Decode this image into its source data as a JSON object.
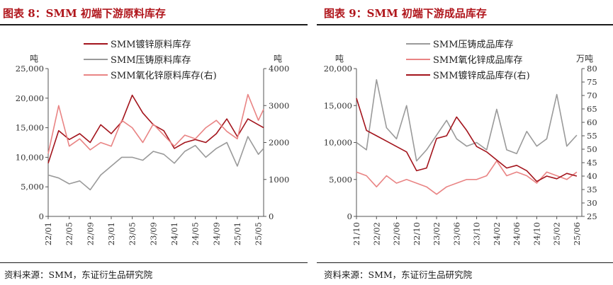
{
  "left": {
    "title": "图表 8：SMM 初端下游原料库存",
    "source": "资料来源：SMM，东证衍生品研究院",
    "chart_data": {
      "type": "line",
      "y_left_unit": "吨",
      "y_right_unit": "吨",
      "y_left_range": [
        0,
        25000
      ],
      "y_right_range": [
        0,
        4000
      ],
      "y_left_ticks": [
        "0",
        "5,000",
        "10,000",
        "15,000",
        "20,000",
        "25,000"
      ],
      "y_right_ticks": [
        "0",
        "1000",
        "2000",
        "3000",
        "4000"
      ],
      "x_ticks": [
        "22/01",
        "22/05",
        "22/09",
        "23/01",
        "23/05",
        "23/09",
        "24/01",
        "24/05",
        "24/09",
        "25/01",
        "25/05"
      ],
      "legend": [
        "SMM镀锌原料库存",
        "SMM压铸原料库存",
        "SMM氧化锌原料库存(右)"
      ],
      "grid": false,
      "series": [
        {
          "name": "SMM镀锌原料库存",
          "axis": "left",
          "color": "#a3141c",
          "x": [
            "22/01",
            "22/03",
            "22/05",
            "22/07",
            "22/09",
            "22/11",
            "23/01",
            "23/03",
            "23/05",
            "23/07",
            "23/09",
            "23/11",
            "24/01",
            "24/03",
            "24/05",
            "24/07",
            "24/09",
            "24/11",
            "25/01",
            "25/03",
            "25/05",
            "25/06"
          ],
          "values": [
            9000,
            14500,
            13000,
            14000,
            12500,
            15500,
            14000,
            16000,
            20500,
            17500,
            15500,
            14500,
            11500,
            12500,
            13000,
            12500,
            14000,
            16500,
            13500,
            16500,
            15500,
            15000
          ]
        },
        {
          "name": "SMM压铸原料库存",
          "axis": "left",
          "color": "#9a9a9a",
          "x": [
            "22/01",
            "22/03",
            "22/05",
            "22/07",
            "22/09",
            "22/11",
            "23/01",
            "23/03",
            "23/05",
            "23/07",
            "23/09",
            "23/11",
            "24/01",
            "24/03",
            "24/05",
            "24/07",
            "24/09",
            "24/11",
            "25/01",
            "25/03",
            "25/05",
            "25/06"
          ],
          "values": [
            7000,
            6500,
            5500,
            6000,
            4500,
            7000,
            8500,
            10000,
            10000,
            9500,
            11000,
            10500,
            9000,
            11000,
            12000,
            10000,
            11500,
            12500,
            8500,
            13500,
            10500,
            11500
          ]
        },
        {
          "name": "SMM氧化锌原料库存(右)",
          "axis": "right",
          "color": "#e98484",
          "x": [
            "22/01",
            "22/03",
            "22/05",
            "22/07",
            "22/09",
            "22/11",
            "23/01",
            "23/03",
            "23/05",
            "23/07",
            "23/09",
            "23/11",
            "24/01",
            "24/03",
            "24/05",
            "24/07",
            "24/09",
            "24/11",
            "25/01",
            "25/03",
            "25/05",
            "25/06"
          ],
          "values": [
            1700,
            3000,
            1900,
            2100,
            1800,
            2000,
            1900,
            2600,
            2400,
            2000,
            2500,
            2200,
            1900,
            2200,
            2100,
            2400,
            2600,
            2300,
            2100,
            3300,
            2600,
            2900
          ]
        }
      ]
    }
  },
  "right": {
    "title": "图表 9：SMM 初端下游成品库存",
    "source": "资料来源：SMM，东证衍生品研究院",
    "chart_data": {
      "type": "line",
      "y_left_unit": "吨",
      "y_right_unit": "万吨",
      "y_left_range": [
        0,
        20000
      ],
      "y_right_range": [
        25,
        80
      ],
      "y_left_ticks": [
        "0",
        "5,000",
        "10,000",
        "15,000",
        "20,000"
      ],
      "y_right_ticks": [
        "25",
        "30",
        "35",
        "40",
        "45",
        "50",
        "55",
        "60",
        "65",
        "70",
        "75",
        "80"
      ],
      "x_ticks": [
        "21/10",
        "22/02",
        "22/06",
        "22/10",
        "23/02",
        "23/06",
        "23/10",
        "24/02",
        "24/06",
        "24/10",
        "25/02",
        "25/06"
      ],
      "legend": [
        "SMM压铸成品库存",
        "SMM氧化锌成品库存",
        "SMM镀锌成品库存(右)"
      ],
      "grid": false,
      "series": [
        {
          "name": "SMM压铸成品库存",
          "axis": "left",
          "color": "#9a9a9a",
          "x": [
            "21/10",
            "21/12",
            "22/02",
            "22/04",
            "22/06",
            "22/08",
            "22/10",
            "22/12",
            "23/02",
            "23/04",
            "23/06",
            "23/08",
            "23/10",
            "23/12",
            "24/02",
            "24/04",
            "24/06",
            "24/08",
            "24/10",
            "24/12",
            "25/02",
            "25/04",
            "25/06"
          ],
          "values": [
            10000,
            9000,
            18500,
            12000,
            10500,
            15000,
            7500,
            9000,
            11000,
            13000,
            10500,
            9500,
            10000,
            9000,
            14500,
            9000,
            8500,
            11500,
            9500,
            10500,
            16500,
            9500,
            11000
          ]
        },
        {
          "name": "SMM氧化锌成品库存",
          "axis": "left",
          "color": "#e98484",
          "x": [
            "21/10",
            "21/12",
            "22/02",
            "22/04",
            "22/06",
            "22/08",
            "22/10",
            "22/12",
            "23/02",
            "23/04",
            "23/06",
            "23/08",
            "23/10",
            "23/12",
            "24/02",
            "24/04",
            "24/06",
            "24/08",
            "24/10",
            "24/12",
            "25/02",
            "25/04",
            "25/06"
          ],
          "values": [
            6000,
            5500,
            4000,
            5500,
            4500,
            5000,
            4500,
            4000,
            3000,
            4000,
            4500,
            5000,
            5000,
            5500,
            7500,
            5500,
            6000,
            5500,
            4500,
            6000,
            5500,
            5000,
            6000
          ]
        },
        {
          "name": "SMM镀锌成品库存(右)",
          "axis": "right",
          "color": "#a3141c",
          "x": [
            "21/10",
            "21/12",
            "22/02",
            "22/04",
            "22/06",
            "22/08",
            "22/10",
            "22/12",
            "23/02",
            "23/04",
            "23/06",
            "23/08",
            "23/10",
            "23/12",
            "24/02",
            "24/04",
            "24/06",
            "24/08",
            "24/10",
            "24/12",
            "25/02",
            "25/04",
            "25/06"
          ],
          "values": [
            69,
            57,
            55,
            53,
            51,
            49,
            42,
            43,
            54,
            55,
            62,
            57,
            51,
            49,
            46,
            43,
            44,
            42,
            38,
            40,
            39,
            41,
            40
          ]
        }
      ]
    }
  }
}
